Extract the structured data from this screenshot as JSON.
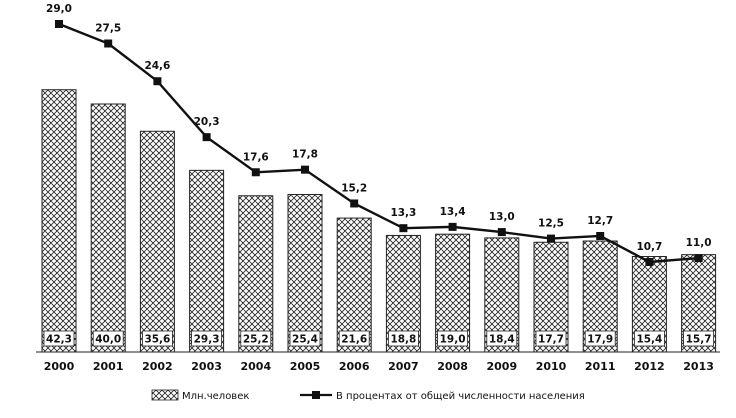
{
  "chart_data": {
    "type": "bar+line",
    "title": "",
    "xlabel": "",
    "ylabel": "",
    "categories": [
      "2000",
      "2001",
      "2002",
      "2003",
      "2004",
      "2005",
      "2006",
      "2007",
      "2008",
      "2009",
      "2010",
      "2011",
      "2012",
      "2013"
    ],
    "series": [
      {
        "name": "Млн.человек",
        "type": "bar",
        "values": [
          42.3,
          40.0,
          35.6,
          29.3,
          25.2,
          25.4,
          21.6,
          18.8,
          19.0,
          18.4,
          17.7,
          17.9,
          15.4,
          15.7
        ],
        "labels": [
          "42,3",
          "40,0",
          "35,6",
          "29,3",
          "25,2",
          "25,4",
          "21,6",
          "18,8",
          "19,0",
          "18,4",
          "17,7",
          "17,9",
          "15,4",
          "15,7"
        ]
      },
      {
        "name": "В процентах от общей численности населения",
        "type": "line",
        "values": [
          29.0,
          27.5,
          24.6,
          20.3,
          17.6,
          17.8,
          15.2,
          13.3,
          13.4,
          13.0,
          12.5,
          12.7,
          10.7,
          11.0
        ],
        "labels": [
          "29,0",
          "27,5",
          "24,6",
          "20,3",
          "17,6",
          "17,8",
          "15,2",
          "13,3",
          "13,4",
          "13,0",
          "12,5",
          "12,7",
          "10,7",
          "11,0"
        ]
      }
    ],
    "legend_position": "bottom",
    "grid": false
  }
}
